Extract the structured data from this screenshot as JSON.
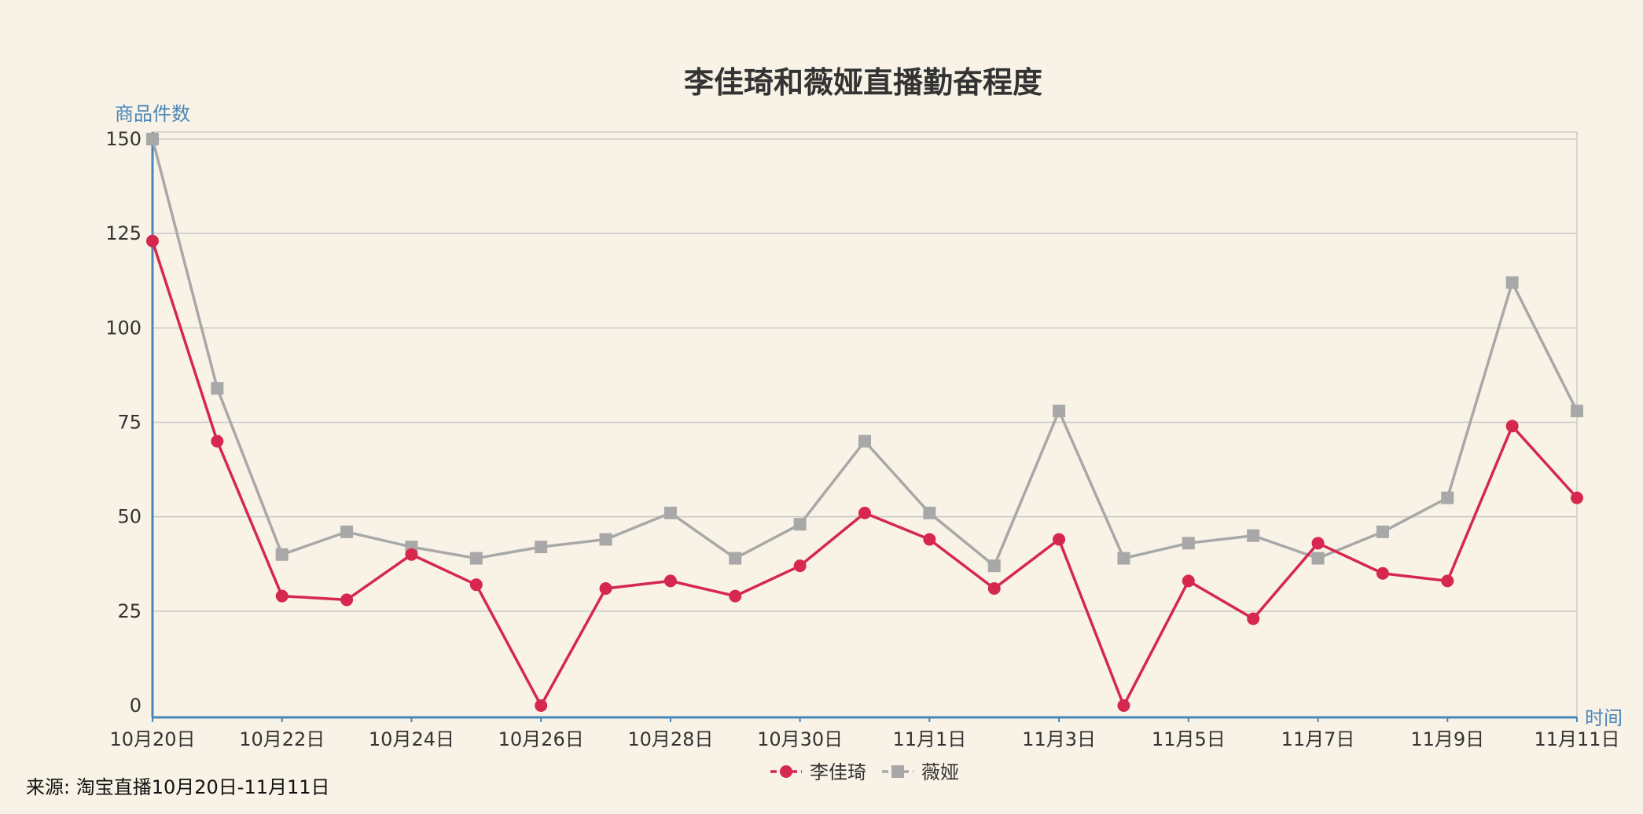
{
  "chart_data": {
    "type": "line",
    "title": "李佳琦和薇娅直播勤奋程度",
    "ylabel": "商品件数",
    "xlabel": "时间",
    "ylim": [
      0,
      150
    ],
    "y_ticks": [
      0,
      25,
      50,
      75,
      100,
      125,
      150
    ],
    "grid": true,
    "legend_position": "bottom-center",
    "x": [
      "10月20日",
      "10月21日",
      "10月22日",
      "10月23日",
      "10月24日",
      "10月25日",
      "10月26日",
      "10月27日",
      "10月28日",
      "10月29日",
      "10月30日",
      "10月31日",
      "11月1日",
      "11月2日",
      "11月3日",
      "11月4日",
      "11月5日",
      "11月6日",
      "11月7日",
      "11月8日",
      "11月9日",
      "11月10日",
      "11月11日"
    ],
    "x_tick_labels": [
      "10月20日",
      "10月22日",
      "10月24日",
      "10月26日",
      "10月28日",
      "10月30日",
      "11月1日",
      "11月3日",
      "11月5日",
      "11月7日",
      "11月9日",
      "11月11日"
    ],
    "series": [
      {
        "name": "李佳琦",
        "color": "#d6284f",
        "marker": "circle",
        "values": [
          123,
          70,
          29,
          28,
          40,
          32,
          0,
          31,
          33,
          29,
          37,
          51,
          44,
          31,
          44,
          0,
          33,
          23,
          43,
          35,
          33,
          74,
          55
        ]
      },
      {
        "name": "薇娅",
        "color": "#a8a8a8",
        "marker": "square",
        "values": [
          150,
          84,
          40,
          46,
          42,
          39,
          42,
          44,
          51,
          39,
          48,
          70,
          51,
          37,
          78,
          39,
          43,
          45,
          39,
          46,
          55,
          112,
          78
        ]
      }
    ]
  },
  "source": "来源: 淘宝直播10月20日-11月11日"
}
